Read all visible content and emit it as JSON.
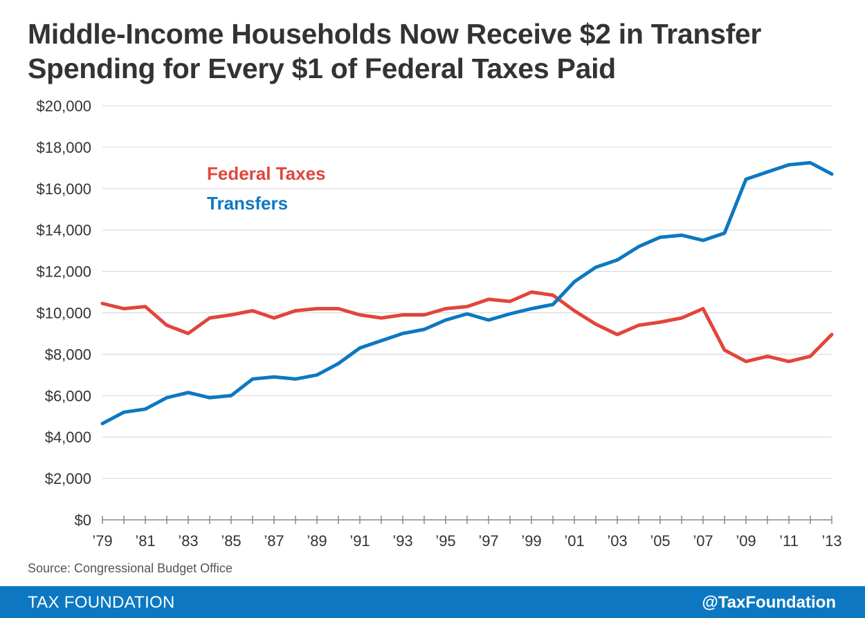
{
  "title_lines": [
    "Middle-Income Households Now Receive $2 in Transfer",
    "Spending for Every $1 of Federal Taxes Paid"
  ],
  "source": "Source: Congressional Budget Office",
  "footer": {
    "org": "TAX FOUNDATION",
    "handle": "@TaxFoundation"
  },
  "colors": {
    "taxes": "#e2453c",
    "transfers": "#0d78c1",
    "footer_bg": "#0d78c1"
  },
  "chart_data": {
    "type": "line",
    "title": "Middle-Income Households Now Receive $2 in Transfer Spending for Every $1 of Federal Taxes Paid",
    "xlabel": "",
    "ylabel": "",
    "x": [
      1979,
      1980,
      1981,
      1982,
      1983,
      1984,
      1985,
      1986,
      1987,
      1988,
      1989,
      1990,
      1991,
      1992,
      1993,
      1994,
      1995,
      1996,
      1997,
      1998,
      1999,
      2000,
      2001,
      2002,
      2003,
      2004,
      2005,
      2006,
      2007,
      2008,
      2009,
      2010,
      2011,
      2012,
      2013
    ],
    "xlim": [
      1979,
      2013
    ],
    "ylim": [
      0,
      20000
    ],
    "y_ticks": [
      0,
      2000,
      4000,
      6000,
      8000,
      10000,
      12000,
      14000,
      16000,
      18000,
      20000
    ],
    "y_tick_labels": [
      "$0",
      "$2,000",
      "$4,000",
      "$6,000",
      "$8,000",
      "$10,000",
      "$12,000",
      "$14,000",
      "$16,000",
      "$18,000",
      "$20,000"
    ],
    "x_tick_labels": [
      {
        "year": 1979,
        "label": "’79"
      },
      {
        "year": 1981,
        "label": "’81"
      },
      {
        "year": 1983,
        "label": "’83"
      },
      {
        "year": 1985,
        "label": "’85"
      },
      {
        "year": 1987,
        "label": "’87"
      },
      {
        "year": 1989,
        "label": "’89"
      },
      {
        "year": 1991,
        "label": "’91"
      },
      {
        "year": 1993,
        "label": "’93"
      },
      {
        "year": 1995,
        "label": "’95"
      },
      {
        "year": 1997,
        "label": "’97"
      },
      {
        "year": 1999,
        "label": "’99"
      },
      {
        "year": 2001,
        "label": "’01"
      },
      {
        "year": 2003,
        "label": "’03"
      },
      {
        "year": 2005,
        "label": "’05"
      },
      {
        "year": 2007,
        "label": "’07"
      },
      {
        "year": 2009,
        "label": "’09"
      },
      {
        "year": 2011,
        "label": "’11"
      },
      {
        "year": 2013,
        "label": "’13"
      }
    ],
    "grid": true,
    "legend_position": "upper-left",
    "series": [
      {
        "name": "Federal Taxes",
        "color": "#e2453c",
        "values": [
          10450,
          10200,
          10300,
          9400,
          9000,
          9750,
          9900,
          10100,
          9750,
          10100,
          10200,
          10200,
          9900,
          9750,
          9900,
          9900,
          10200,
          10300,
          10650,
          10550,
          11000,
          10850,
          10100,
          9450,
          8950,
          9400,
          9550,
          9750,
          10200,
          8200,
          7650,
          7900,
          7650,
          7900,
          8950
        ]
      },
      {
        "name": "Transfers",
        "color": "#0d78c1",
        "values": [
          4650,
          5200,
          5350,
          5900,
          6150,
          5900,
          6000,
          6800,
          6900,
          6800,
          7000,
          7550,
          8300,
          8650,
          9000,
          9200,
          9650,
          9950,
          9650,
          9950,
          10200,
          10400,
          11500,
          12200,
          12550,
          13200,
          13650,
          13750,
          13500,
          13850,
          16450,
          16800,
          17150,
          17250,
          16700
        ]
      }
    ]
  }
}
